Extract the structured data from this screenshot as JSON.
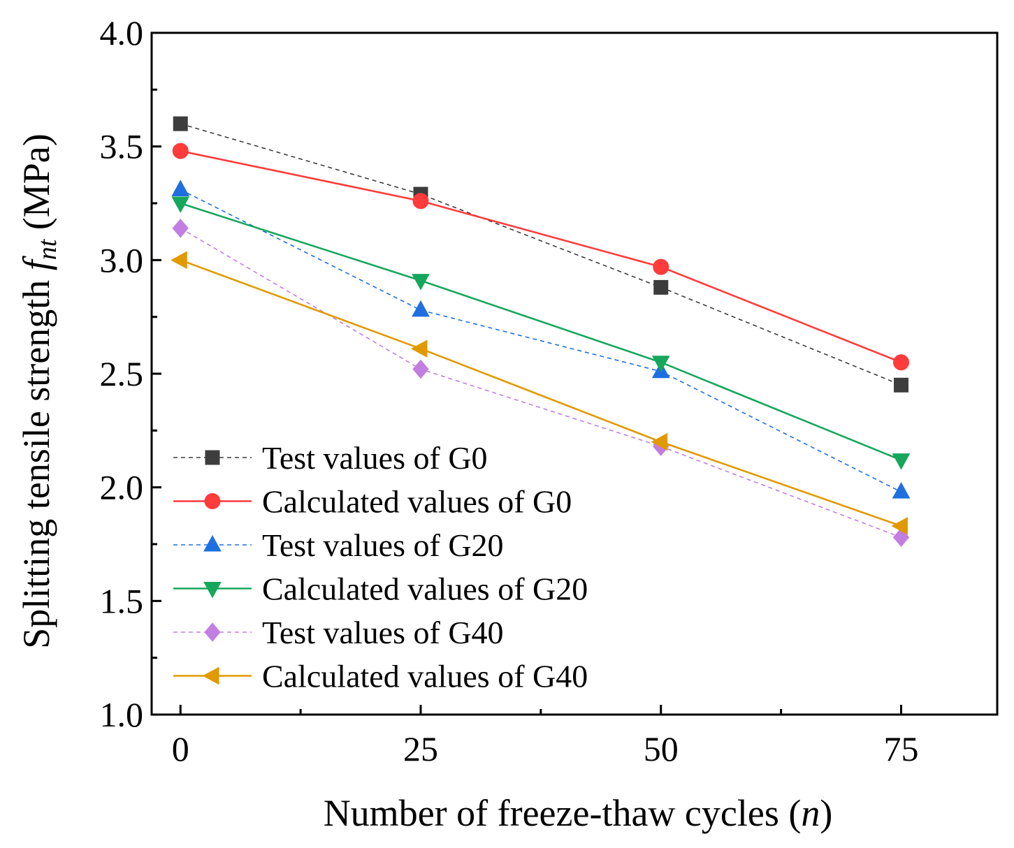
{
  "chart_data": {
    "type": "line",
    "title": "",
    "xlabel": "Number of freeze-thaw cycles (n)",
    "xlabel_parts": {
      "text": "Number of freeze-thaw cycles (",
      "var": "n",
      "close": ")"
    },
    "ylabel": "Splitting tensile strength f_nt (MPa)",
    "ylabel_parts": {
      "text": "Splitting tensile strength ",
      "var": "f",
      "sub": "nt",
      "unit": " (MPa)"
    },
    "x": [
      0,
      25,
      50,
      75
    ],
    "xlim": [
      -3,
      85
    ],
    "ylim": [
      1.0,
      4.0
    ],
    "xticks": [
      "0",
      "25",
      "50",
      "75"
    ],
    "yticks": [
      "1.0",
      "1.5",
      "2.0",
      "2.5",
      "3.0",
      "3.5",
      "4.0"
    ],
    "legend_position": "bottom-left",
    "series": [
      {
        "name": "Test values of G0",
        "values": [
          3.6,
          3.29,
          2.88,
          2.45
        ],
        "color": "#3d3d3d",
        "line": "dashed",
        "marker": "square"
      },
      {
        "name": "Calculated values of G0",
        "values": [
          3.48,
          3.26,
          2.97,
          2.55
        ],
        "color": "#ff3b3b",
        "line": "solid",
        "marker": "circle"
      },
      {
        "name": "Test values of G20",
        "values": [
          3.31,
          2.78,
          2.51,
          1.98
        ],
        "color": "#1f6fe0",
        "line": "dashed",
        "marker": "triangle-up"
      },
      {
        "name": "Calculated values of G20",
        "values": [
          3.25,
          2.91,
          2.55,
          2.12
        ],
        "color": "#16a75c",
        "line": "solid",
        "marker": "triangle-down"
      },
      {
        "name": "Test values of G40",
        "values": [
          3.14,
          2.52,
          2.18,
          1.78
        ],
        "color": "#c27ee0",
        "line": "dashed",
        "marker": "diamond"
      },
      {
        "name": "Calculated values of G40",
        "values": [
          3.0,
          2.61,
          2.2,
          1.83
        ],
        "color": "#e09a00",
        "line": "solid",
        "marker": "triangle-left"
      }
    ]
  }
}
